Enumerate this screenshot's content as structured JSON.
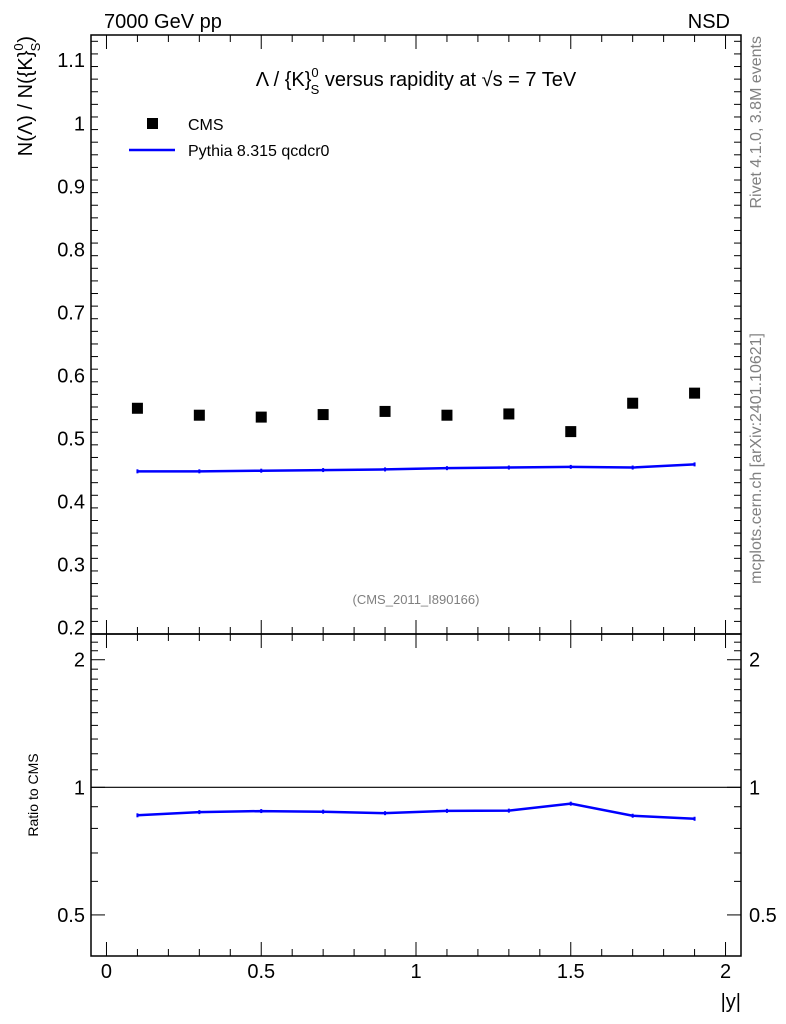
{
  "header": {
    "left": "7000 GeV pp",
    "right": "NSD"
  },
  "side_labels": {
    "rivet": "Rivet 4.1.0,  3.8M events",
    "mcplots": "mcplots.cern.ch [arXiv:2401.10621]"
  },
  "watermark": "(CMS_2011_I890166)",
  "chart_data": [
    {
      "type": "scatter",
      "title_parts": {
        "pre": "Λ / {K}",
        "sup": "0",
        "sub": "S",
        "post": " versus rapidity at ",
        "sqrt": "√s",
        "tail": " = 7 TeV"
      },
      "ylabel_parts": {
        "pre": "N(Λ)  /  N({K}",
        "sup": "0",
        "sub": "S",
        "post": ")"
      },
      "xlim": [
        -0.05,
        2.05
      ],
      "ylim": [
        0.19,
        1.14
      ],
      "yticks": [
        0.2,
        0.3,
        0.4,
        0.5,
        0.6,
        0.7,
        0.8,
        0.9,
        1.0,
        1.1
      ],
      "ytick_labels": [
        "0.2",
        "0.3",
        "0.4",
        "0.5",
        "0.6",
        "0.7",
        "0.8",
        "0.9",
        "1",
        "1.1"
      ],
      "legend": {
        "position": "top-left",
        "entries": [
          "CMS",
          "Pythia 8.315 qcdcr0"
        ]
      },
      "series": [
        {
          "name": "CMS",
          "style": "markers",
          "color": "#000000",
          "x": [
            0.1,
            0.3,
            0.5,
            0.7,
            0.9,
            1.1,
            1.3,
            1.5,
            1.7,
            1.9
          ],
          "y": [
            0.548,
            0.537,
            0.534,
            0.538,
            0.543,
            0.537,
            0.539,
            0.511,
            0.556,
            0.572
          ]
        },
        {
          "name": "Pythia 8.315 qcdcr0",
          "style": "line",
          "color": "#0000ff",
          "x": [
            0.1,
            0.3,
            0.5,
            0.7,
            0.9,
            1.1,
            1.3,
            1.5,
            1.7,
            1.9
          ],
          "y": [
            0.448,
            0.448,
            0.449,
            0.45,
            0.451,
            0.453,
            0.454,
            0.455,
            0.454,
            0.459
          ]
        }
      ]
    },
    {
      "type": "line",
      "ylabel": "Ratio to CMS",
      "xlabel": "|y|",
      "xlim": [
        -0.05,
        2.05
      ],
      "ylim": [
        0.4,
        2.3
      ],
      "xticks": [
        0,
        0.5,
        1,
        1.5,
        2
      ],
      "xtick_labels": [
        "0",
        "0.5",
        "1",
        "1.5",
        "2"
      ],
      "yticks": [
        0.5,
        1,
        2
      ],
      "ytick_labels": [
        "0.5",
        "1",
        "2"
      ],
      "reference_line": 1,
      "series": [
        {
          "name": "Pythia 8.315 qcdcr0",
          "color": "#0000ff",
          "x": [
            0.1,
            0.3,
            0.5,
            0.7,
            0.9,
            1.1,
            1.3,
            1.5,
            1.7,
            1.9
          ],
          "y": [
            0.859,
            0.874,
            0.879,
            0.876,
            0.869,
            0.88,
            0.881,
            0.915,
            0.857,
            0.843
          ]
        }
      ]
    }
  ]
}
